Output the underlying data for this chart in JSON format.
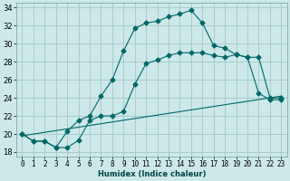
{
  "xlabel": "Humidex (Indice chaleur)",
  "bg_color": "#cce8e8",
  "grid_color": "#aacccc",
  "line_color": "#006868",
  "xlim": [
    -0.5,
    23.5
  ],
  "ylim": [
    17.5,
    34.5
  ],
  "xticks": [
    0,
    1,
    2,
    3,
    4,
    5,
    6,
    7,
    8,
    9,
    10,
    11,
    12,
    13,
    14,
    15,
    16,
    17,
    18,
    19,
    20,
    21,
    22,
    23
  ],
  "yticks": [
    18,
    20,
    22,
    24,
    26,
    28,
    30,
    32,
    34
  ],
  "curve1_x": [
    0,
    1,
    2,
    3,
    4,
    5,
    6,
    7,
    8,
    9,
    10,
    11,
    12,
    13,
    14,
    15,
    16,
    17,
    18,
    19,
    20,
    21,
    22,
    23
  ],
  "curve1_y": [
    20.0,
    19.2,
    19.2,
    18.5,
    20.3,
    21.5,
    22.0,
    24.2,
    26.0,
    29.2,
    31.7,
    32.3,
    32.5,
    33.0,
    33.3,
    33.7,
    32.3,
    29.8,
    29.5,
    28.8,
    28.5,
    24.5,
    23.8,
    23.8
  ],
  "curve2_x": [
    0,
    1,
    2,
    3,
    4,
    5,
    6,
    7,
    8,
    9,
    10,
    11,
    12,
    13,
    14,
    15,
    16,
    17,
    18,
    19,
    20,
    21,
    22,
    23
  ],
  "curve2_y": [
    20.0,
    19.2,
    19.2,
    18.5,
    18.5,
    19.3,
    21.5,
    22.0,
    22.0,
    22.5,
    25.5,
    27.8,
    28.2,
    28.7,
    29.0,
    29.0,
    29.0,
    28.7,
    28.5,
    28.8,
    28.5,
    28.5,
    24.0,
    24.0
  ],
  "curve3_x": [
    0,
    23
  ],
  "curve3_y": [
    19.8,
    24.2
  ],
  "xlabel_fontsize": 6.0,
  "tick_fontsize": 5.5
}
